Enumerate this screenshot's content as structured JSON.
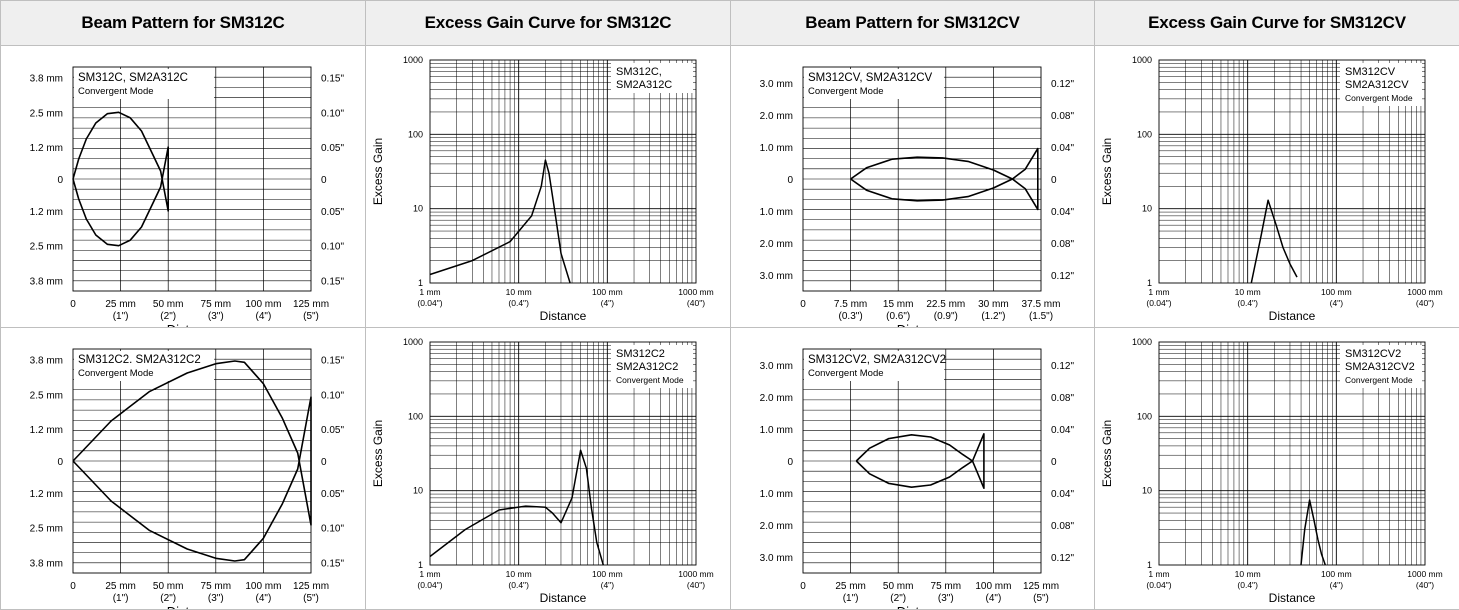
{
  "headers": [
    "Beam Pattern for SM312C",
    "Excess Gain Curve for SM312C",
    "Beam Pattern for SM312CV",
    "Excess Gain Curve for SM312CV"
  ],
  "chart_data": [
    {
      "type": "line",
      "kind": "beam",
      "legend": [
        "SM312C, SM2A312C",
        "Convergent Mode"
      ],
      "xlabel": "Distance",
      "xlim": [
        0,
        125
      ],
      "ylim": [
        -4.2,
        4.2
      ],
      "x_ticks": [
        0,
        25,
        50,
        75,
        100,
        125
      ],
      "x_tick_labels": [
        "0",
        "25 mm",
        "50 mm",
        "75 mm",
        "100 mm",
        "125 mm"
      ],
      "x_tick_labels2": [
        "",
        "(1\")",
        "(2\")",
        "(3\")",
        "(4\")",
        "(5\")"
      ],
      "y_ticks": [
        3.8,
        2.5,
        1.2,
        0,
        -1.2,
        -2.5,
        -3.8
      ],
      "y_tick_labels": [
        "3.8 mm",
        "2.5 mm",
        "1.2 mm",
        "0",
        "1.2 mm",
        "2.5 mm",
        "3.8 mm"
      ],
      "y2_tick_labels": [
        "0.15\"",
        "0.10\"",
        "0.05\"",
        "0",
        "0.05\"",
        "0.10\"",
        "0.15\""
      ],
      "series": [
        {
          "x": [
            0,
            3,
            7,
            12,
            18,
            24,
            30,
            36,
            42,
            46,
            50,
            50,
            46,
            42,
            36,
            30,
            24,
            18,
            12,
            7,
            3,
            0
          ],
          "y": [
            0,
            0.75,
            1.5,
            2.1,
            2.45,
            2.5,
            2.3,
            1.8,
            0.9,
            0.3,
            -1.2,
            1.2,
            -0.3,
            -0.9,
            -1.8,
            -2.3,
            -2.5,
            -2.45,
            -2.1,
            -1.5,
            -0.75,
            0
          ]
        }
      ]
    },
    {
      "type": "line",
      "kind": "gain",
      "legend": [
        "SM312C,",
        "SM2A312C"
      ],
      "xlabel": "Distance",
      "ylabel": "Excess Gain",
      "x_log_range": [
        1,
        1000
      ],
      "y_log_range": [
        1,
        1000
      ],
      "x_ticks": [
        1,
        10,
        100,
        1000
      ],
      "x_tick_labels": [
        "1 mm",
        "10 mm",
        "100 mm",
        "1000 mm"
      ],
      "x_tick_labels2": [
        "(0.04\")",
        "(0.4\")",
        "(4\")",
        "(40\")"
      ],
      "y_ticks": [
        1,
        10,
        100,
        1000
      ],
      "y_tick_labels": [
        "1",
        "10",
        "100",
        "1000"
      ],
      "series": [
        {
          "x": [
            1,
            3,
            8,
            14,
            18,
            20,
            22,
            26,
            30,
            38
          ],
          "y": [
            1.3,
            2,
            3.6,
            8,
            20,
            45,
            30,
            8,
            2.5,
            1
          ]
        }
      ]
    },
    {
      "type": "line",
      "kind": "beam",
      "legend": [
        "SM312CV, SM2A312CV",
        "Convergent Mode"
      ],
      "xlabel": "Distance",
      "xlim": [
        0,
        37.5
      ],
      "ylim": [
        -3.5,
        3.5
      ],
      "x_ticks": [
        0,
        7.5,
        15,
        22.5,
        30,
        37.5
      ],
      "x_tick_labels": [
        "0",
        "7.5 mm",
        "15 mm",
        "22.5 mm",
        "30 mm",
        "37.5 mm"
      ],
      "x_tick_labels2": [
        "",
        "(0.3\")",
        "(0.6\")",
        "(0.9\")",
        "(1.2\")",
        "(1.5\")"
      ],
      "y_ticks": [
        3,
        2,
        1,
        0,
        -1,
        -2,
        -3
      ],
      "y_tick_labels": [
        "3.0 mm",
        "2.0 mm",
        "1.0 mm",
        "0",
        "1.0 mm",
        "2.0 mm",
        "3.0 mm"
      ],
      "y2_tick_labels": [
        "0.12\"",
        "0.08\"",
        "0.04\"",
        "0",
        "0.04\"",
        "0.08\"",
        "0.12\""
      ],
      "series": [
        {
          "x": [
            7.5,
            10,
            14,
            18,
            22,
            26,
            30,
            33,
            35,
            37,
            37,
            35,
            33,
            30,
            26,
            22,
            18,
            14,
            10,
            7.5
          ],
          "y": [
            0,
            0.35,
            0.62,
            0.68,
            0.66,
            0.55,
            0.28,
            0,
            -0.3,
            -0.95,
            0.95,
            0.3,
            0,
            -0.28,
            -0.55,
            -0.66,
            -0.68,
            -0.62,
            -0.35,
            0
          ]
        }
      ]
    },
    {
      "type": "line",
      "kind": "gain",
      "legend": [
        "SM312CV",
        "SM2A312CV",
        "Convergent Mode"
      ],
      "xlabel": "Distance",
      "ylabel": "Excess Gain",
      "x_log_range": [
        1,
        1000
      ],
      "y_log_range": [
        1,
        1000
      ],
      "x_ticks": [
        1,
        10,
        100,
        1000
      ],
      "x_tick_labels": [
        "1 mm",
        "10 mm",
        "100 mm",
        "1000 mm"
      ],
      "x_tick_labels2": [
        "(0.04\")",
        "(0.4\")",
        "(4\")",
        "(40\")"
      ],
      "y_ticks": [
        1,
        10,
        100,
        1000
      ],
      "y_tick_labels": [
        "1",
        "10",
        "100",
        "1000"
      ],
      "series": [
        {
          "x": [
            11,
            14,
            17,
            21,
            25,
            30,
            36
          ],
          "y": [
            1,
            4,
            13,
            6,
            3,
            1.8,
            1.2
          ]
        }
      ]
    },
    {
      "type": "line",
      "kind": "beam",
      "legend": [
        "SM312C2. SM2A312C2",
        "Convergent Mode"
      ],
      "xlabel": "Distance",
      "xlim": [
        0,
        125
      ],
      "ylim": [
        -4.2,
        4.2
      ],
      "x_ticks": [
        0,
        25,
        50,
        75,
        100,
        125
      ],
      "x_tick_labels": [
        "0",
        "25 mm",
        "50 mm",
        "75 mm",
        "100 mm",
        "125 mm"
      ],
      "x_tick_labels2": [
        "",
        "(1\")",
        "(2\")",
        "(3\")",
        "(4\")",
        "(5\")"
      ],
      "y_ticks": [
        3.8,
        2.5,
        1.2,
        0,
        -1.2,
        -2.5,
        -3.8
      ],
      "y_tick_labels": [
        "3.8 mm",
        "2.5 mm",
        "1.2 mm",
        "0",
        "1.2 mm",
        "2.5 mm",
        "3.8 mm"
      ],
      "y2_tick_labels": [
        "0.15\"",
        "0.10\"",
        "0.05\"",
        "0",
        "0.05\"",
        "0.10\"",
        "0.15\""
      ],
      "series": [
        {
          "x": [
            0,
            20,
            40,
            60,
            75,
            85,
            90,
            100,
            110,
            118,
            125,
            125,
            118,
            110,
            100,
            90,
            85,
            75,
            60,
            40,
            20,
            0
          ],
          "y": [
            0,
            1.5,
            2.6,
            3.3,
            3.65,
            3.75,
            3.7,
            2.9,
            1.6,
            0.3,
            -2.4,
            2.4,
            -0.3,
            -1.6,
            -2.9,
            -3.7,
            -3.75,
            -3.65,
            -3.3,
            -2.6,
            -1.5,
            0
          ]
        }
      ]
    },
    {
      "type": "line",
      "kind": "gain",
      "legend": [
        "SM312C2",
        "SM2A312C2",
        "Convergent Mode"
      ],
      "xlabel": "Distance",
      "ylabel": "Excess Gain",
      "x_log_range": [
        1,
        1000
      ],
      "y_log_range": [
        1,
        1000
      ],
      "x_ticks": [
        1,
        10,
        100,
        1000
      ],
      "x_tick_labels": [
        "1 mm",
        "10 mm",
        "100 mm",
        "1000 mm"
      ],
      "x_tick_labels2": [
        "(0.04\")",
        "(0.4\")",
        "(4\")",
        "(40\")"
      ],
      "y_ticks": [
        1,
        10,
        100,
        1000
      ],
      "y_tick_labels": [
        "1",
        "10",
        "100",
        "1000"
      ],
      "series": [
        {
          "x": [
            1,
            2.5,
            6,
            12,
            20,
            24,
            30,
            40,
            50,
            58,
            66,
            76,
            90
          ],
          "y": [
            1.3,
            3,
            5.5,
            6.2,
            6,
            5,
            3.7,
            8,
            35,
            20,
            6,
            2,
            1
          ]
        }
      ]
    },
    {
      "type": "line",
      "kind": "beam",
      "legend": [
        "SM312CV2, SM2A312CV2",
        "Convergent Mode"
      ],
      "xlabel": "Distance",
      "xlim": [
        0,
        125
      ],
      "ylim": [
        -3.5,
        3.5
      ],
      "x_ticks": [
        0,
        25,
        50,
        75,
        100,
        125
      ],
      "x_tick_labels": [
        "0",
        "25 mm",
        "50 mm",
        "75 mm",
        "100 mm",
        "125 mm"
      ],
      "x_tick_labels2": [
        "",
        "(1\")",
        "(2\")",
        "(3\")",
        "(4\")",
        "(5\")"
      ],
      "y_ticks": [
        3,
        2,
        1,
        0,
        -1,
        -2,
        -3
      ],
      "y_tick_labels": [
        "3.0 mm",
        "2.0 mm",
        "1.0 mm",
        "0",
        "1.0 mm",
        "2.0 mm",
        "3.0 mm"
      ],
      "y2_tick_labels": [
        "0.12\"",
        "0.08\"",
        "0.04\"",
        "0",
        "0.04\"",
        "0.08\"",
        "0.12\""
      ],
      "series": [
        {
          "x": [
            28,
            35,
            45,
            57,
            67,
            77,
            84,
            89,
            95,
            95,
            89,
            84,
            77,
            67,
            57,
            45,
            35,
            28
          ],
          "y": [
            0,
            0.4,
            0.7,
            0.82,
            0.75,
            0.5,
            0.2,
            0,
            -0.85,
            0.85,
            0,
            -0.2,
            -0.5,
            -0.75,
            -0.82,
            -0.7,
            -0.4,
            0
          ]
        }
      ]
    },
    {
      "type": "line",
      "kind": "gain",
      "legend": [
        "SM312CV2",
        "SM2A312CV2",
        "Convergent Mode"
      ],
      "xlabel": "Distance",
      "ylabel": "Excess Gain",
      "x_log_range": [
        1,
        1000
      ],
      "y_log_range": [
        1,
        1000
      ],
      "x_ticks": [
        1,
        10,
        100,
        1000
      ],
      "x_tick_labels": [
        "1 mm",
        "10 mm",
        "100 mm",
        "1000 mm"
      ],
      "x_tick_labels2": [
        "(0.04\")",
        "(0.4\")",
        "(4\")",
        "(40\")"
      ],
      "y_ticks": [
        1,
        10,
        100,
        1000
      ],
      "y_tick_labels": [
        "1",
        "10",
        "100",
        "1000"
      ],
      "series": [
        {
          "x": [
            40,
            44,
            50,
            56,
            62,
            68,
            75
          ],
          "y": [
            1,
            3,
            7.5,
            4,
            2.2,
            1.4,
            1
          ]
        }
      ]
    }
  ]
}
